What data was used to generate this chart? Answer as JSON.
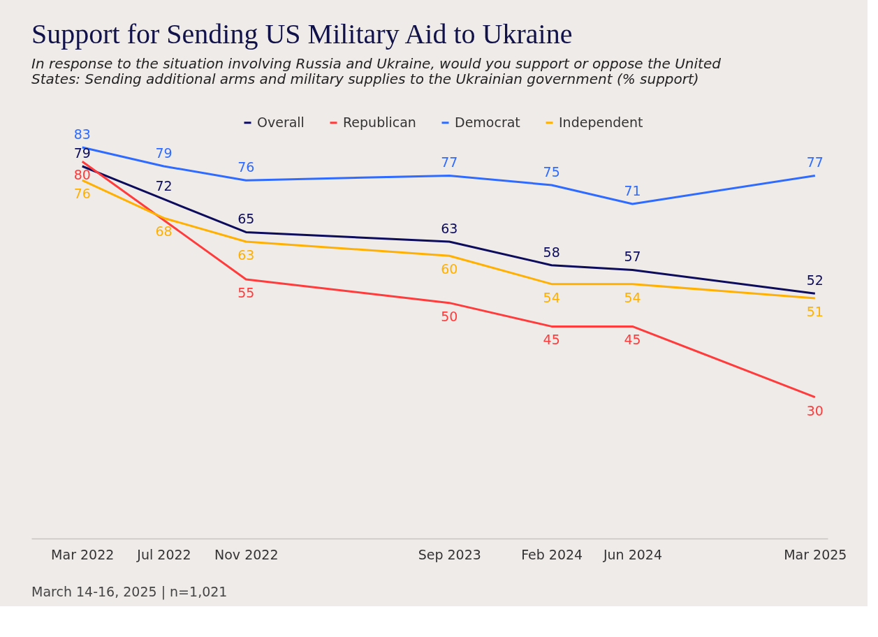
{
  "chart_data": {
    "type": "line",
    "title": "Support for Sending US Military Aid to Ukraine",
    "subtitle": "In response to the situation involving Russia and Ukraine, would you support or oppose the United States: Sending additional arms and military supplies to the Ukrainian government (% support)",
    "x": [
      "2022-03",
      "2022-07",
      "2022-11",
      "2023-09",
      "2024-02",
      "2024-06",
      "2025-03"
    ],
    "xlim": [
      "2021-12-15",
      "2025-03-20"
    ],
    "xticks": [
      {
        "value": "2022-03",
        "label": "Mar 2022"
      },
      {
        "value": "2022-07",
        "label": "Jul 2022"
      },
      {
        "value": "2022-11",
        "label": "Nov 2022"
      },
      {
        "value": "2023-09",
        "label": "Sep 2023"
      },
      {
        "value": "2024-02",
        "label": "Feb 2024"
      },
      {
        "value": "2024-06",
        "label": "Jun 2024"
      },
      {
        "value": "2025-03",
        "label": "Mar 2025"
      }
    ],
    "series": [
      {
        "name": "Overall",
        "color": "#0d0b5c",
        "values": [
          79,
          72,
          65,
          63,
          58,
          57,
          52
        ]
      },
      {
        "name": "Republican",
        "color": "#ff3b3b",
        "x": [
          "2022-03",
          "2022-11",
          "2023-09",
          "2024-02",
          "2024-06",
          "2025-03"
        ],
        "values": [
          80,
          55,
          50,
          45,
          45,
          30
        ]
      },
      {
        "name": "Democrat",
        "color": "#2f6bff",
        "values": [
          83,
          79,
          76,
          77,
          75,
          71,
          77
        ]
      },
      {
        "name": "Independent",
        "color": "#ffb000",
        "values": [
          76,
          68,
          63,
          60,
          54,
          54,
          51
        ]
      }
    ],
    "data_labels": true,
    "legend": "top",
    "grid": false,
    "tick_labels": "x",
    "marker": "none",
    "line_style": "solid",
    "annotations": [
      "March 14-16, 2025 | n=1,021"
    ]
  }
}
